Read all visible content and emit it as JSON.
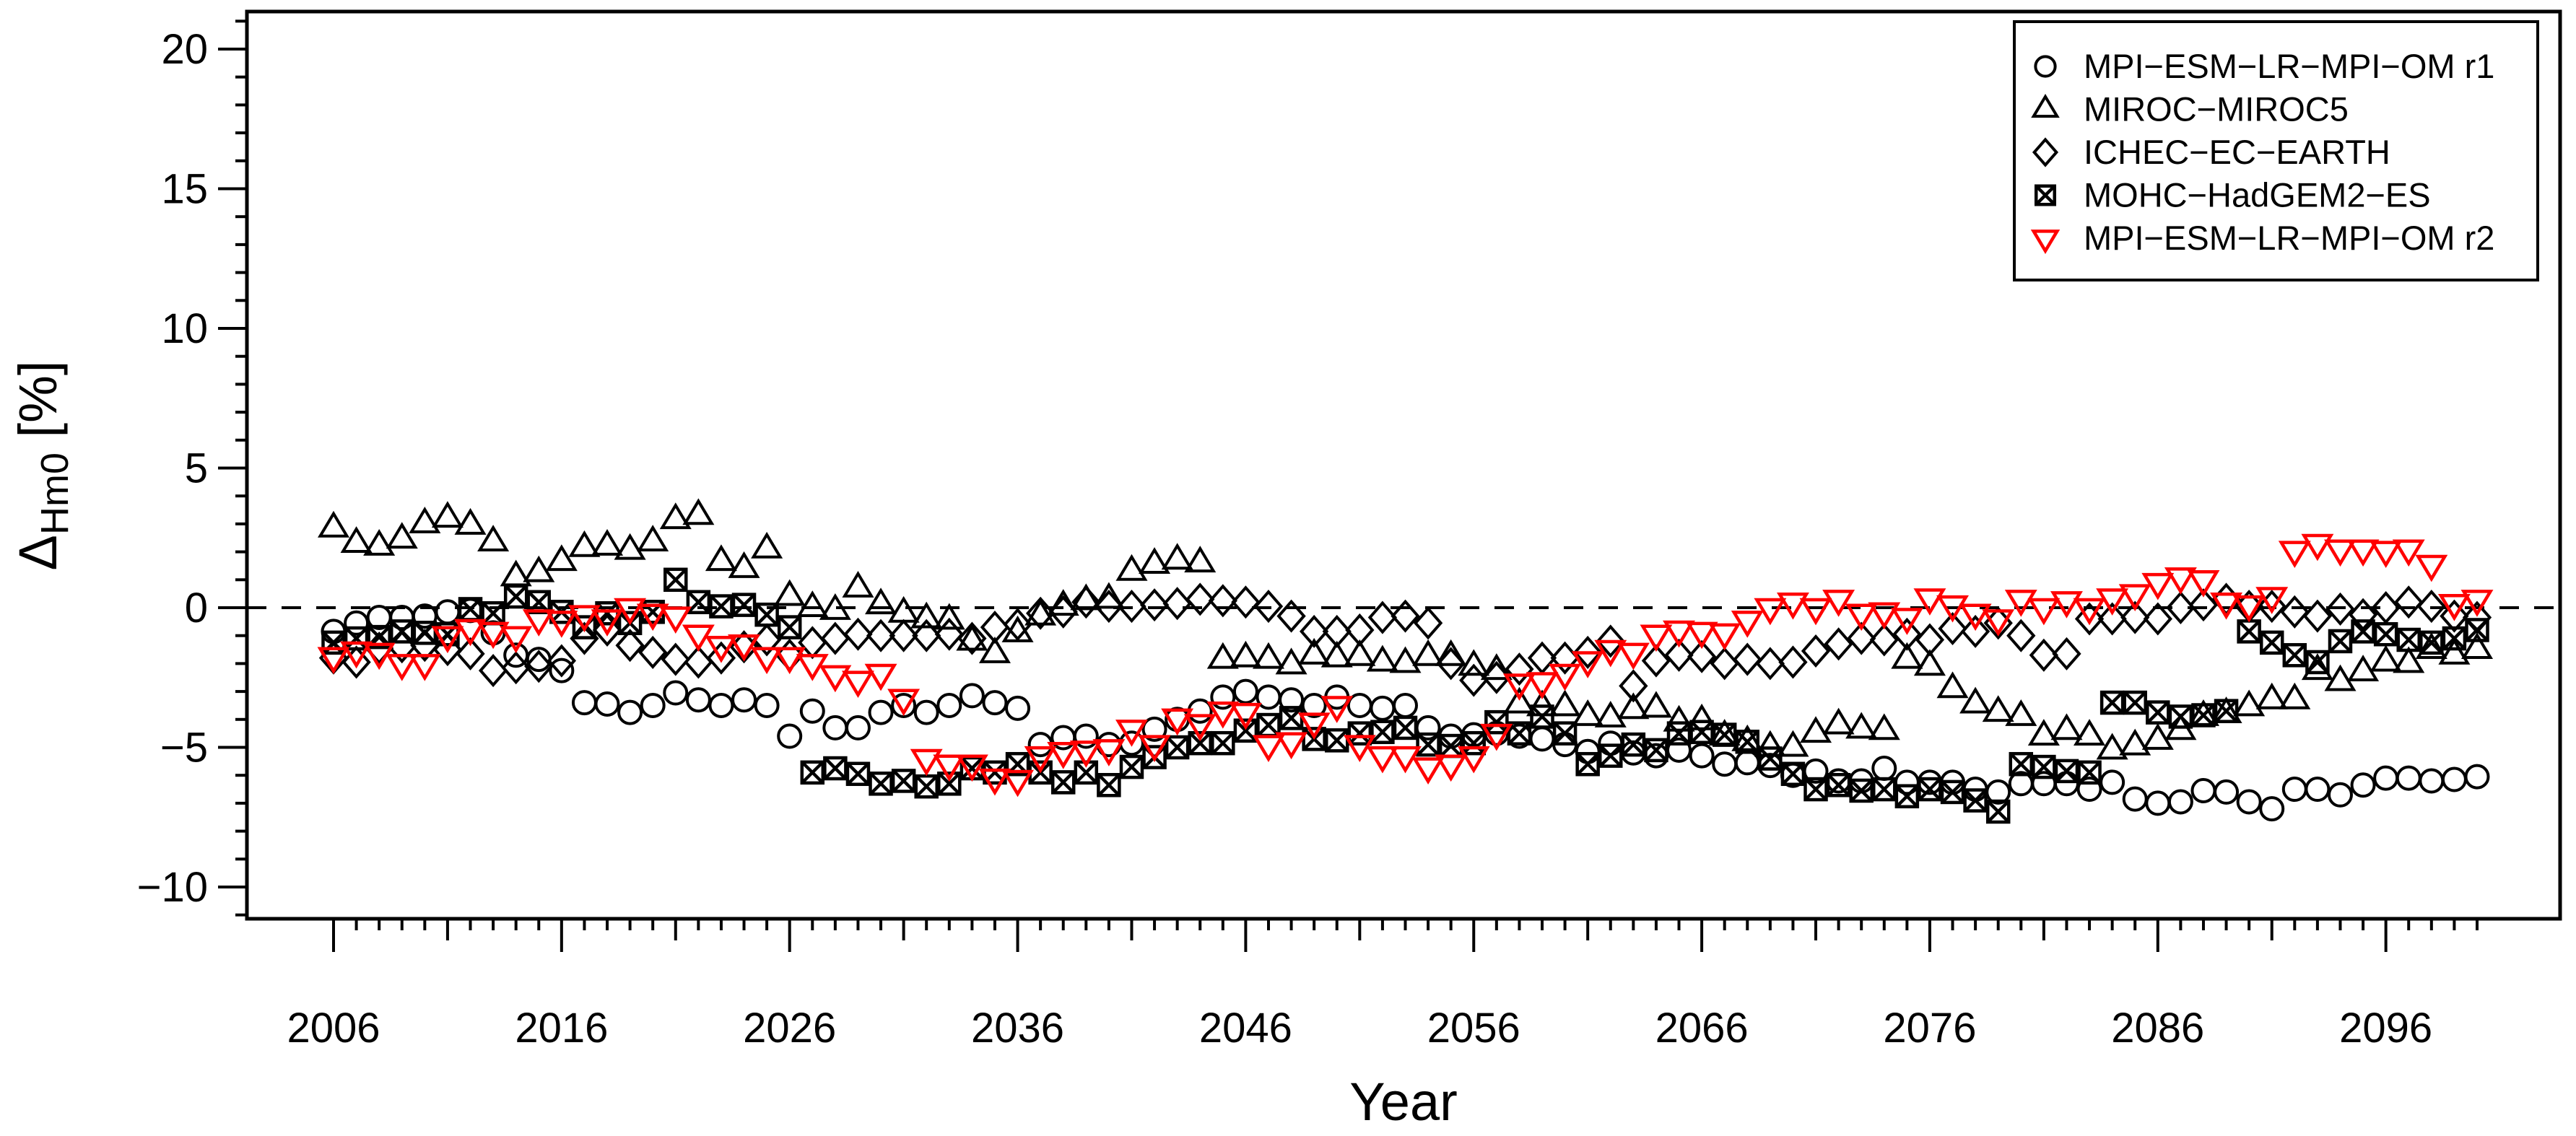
{
  "figure": {
    "background": "#ffffff",
    "axis_color": "#000000",
    "x_axis_title": "Year",
    "y_axis_title_delta": "Δ",
    "y_axis_title_sub": "Hm0",
    "y_axis_title_unit": " [%]"
  },
  "chart_data": {
    "type": "scatter",
    "title": "",
    "xlabel": "Year",
    "ylabel": "ΔHm0 [%]",
    "grid": false,
    "zero_line": {
      "show": true,
      "style": "dashed",
      "y": 0
    },
    "legend_position": "top-right",
    "axes": {
      "xlim": [
        2002.2,
        2103.6
      ],
      "ylim": [
        -11.1,
        21.3
      ],
      "x_tick_labels": [
        2006,
        2016,
        2026,
        2036,
        2046,
        2056,
        2066,
        2076,
        2086,
        2096
      ],
      "x_minor_tick_step": 1,
      "x_medium_tick_step": 5,
      "y_tick_labels": [
        -10,
        -5,
        0,
        5,
        10,
        15,
        20
      ],
      "y_minor_tick_step": 1
    },
    "colors": {
      "black": "#000000",
      "red": "#FF0000"
    },
    "x_start": 2006,
    "x_step": 1,
    "series": [
      {
        "name": "MPI−ESM−LR−MPI−OM r1",
        "marker": "circle",
        "color": "#000000",
        "values": [
          -0.85,
          -0.55,
          -0.35,
          -0.35,
          -0.3,
          -0.15,
          -0.1,
          -0.9,
          -1.7,
          -1.85,
          -2.25,
          -3.4,
          -3.45,
          -3.75,
          -3.5,
          -3.05,
          -3.3,
          -3.5,
          -3.3,
          -3.5,
          -4.6,
          -3.7,
          -4.3,
          -4.3,
          -3.75,
          -3.5,
          -3.75,
          -3.5,
          -3.15,
          -3.4,
          -3.6,
          -4.9,
          -4.65,
          -4.6,
          -4.9,
          -4.85,
          -4.35,
          -4.0,
          -3.7,
          -3.2,
          -3.0,
          -3.2,
          -3.3,
          -3.5,
          -3.2,
          -3.5,
          -3.6,
          -3.5,
          -4.3,
          -4.6,
          -4.55,
          -4.5,
          -4.6,
          -4.7,
          -4.9,
          -5.15,
          -4.85,
          -5.2,
          -5.3,
          -5.1,
          -5.3,
          -5.6,
          -5.55,
          -5.65,
          -6.0,
          -5.85,
          -6.2,
          -6.2,
          -5.75,
          -6.25,
          -6.25,
          -6.25,
          -6.5,
          -6.6,
          -6.3,
          -6.3,
          -6.3,
          -6.5,
          -6.25,
          -6.85,
          -7.0,
          -6.95,
          -6.55,
          -6.6,
          -6.95,
          -7.2,
          -6.5,
          -6.5,
          -6.7,
          -6.35,
          -6.1,
          -6.1,
          -6.2,
          -6.15,
          -6.05
        ]
      },
      {
        "name": "MIROC−MIROC5",
        "marker": "triangle-up",
        "color": "#000000",
        "values": [
          2.85,
          2.3,
          2.2,
          2.45,
          3.0,
          3.2,
          2.95,
          2.35,
          1.1,
          1.25,
          1.65,
          2.15,
          2.2,
          2.05,
          2.35,
          3.15,
          3.3,
          1.65,
          1.4,
          2.1,
          0.4,
          0.0,
          -0.1,
          0.7,
          0.1,
          -0.2,
          -0.4,
          -0.45,
          -1.2,
          -1.65,
          -0.9,
          -0.3,
          0.05,
          0.25,
          0.3,
          1.3,
          1.55,
          1.7,
          1.6,
          -1.85,
          -1.8,
          -1.85,
          -2.05,
          -1.7,
          -1.8,
          -1.75,
          -1.95,
          -2.0,
          -1.75,
          -1.75,
          -2.1,
          -2.25,
          -3.45,
          -3.55,
          -3.55,
          -3.9,
          -3.95,
          -3.65,
          -3.6,
          -4.1,
          -4.05,
          -4.6,
          -4.8,
          -5.0,
          -5.0,
          -4.5,
          -4.2,
          -4.35,
          -4.4,
          -1.85,
          -2.1,
          -2.9,
          -3.45,
          -3.75,
          -3.9,
          -4.6,
          -4.4,
          -4.6,
          -5.1,
          -4.95,
          -4.75,
          -4.4,
          -3.9,
          -3.8,
          -3.55,
          -3.3,
          -3.3,
          -2.25,
          -2.65,
          -2.3,
          -1.95,
          -2.0,
          -1.5,
          -1.7,
          -1.5
        ]
      },
      {
        "name": "ICHEC−EC−EARTH",
        "marker": "diamond",
        "color": "#000000",
        "values": [
          -1.8,
          -1.95,
          -1.45,
          -1.4,
          -1.35,
          -1.5,
          -1.65,
          -2.25,
          -2.15,
          -2.1,
          -1.9,
          -1.1,
          -0.8,
          -1.35,
          -1.6,
          -1.85,
          -1.95,
          -1.8,
          -1.4,
          -1.15,
          -1.7,
          -1.25,
          -1.1,
          -0.95,
          -1.0,
          -1.0,
          -1.0,
          -0.95,
          -1.1,
          -0.7,
          -0.6,
          -0.2,
          -0.15,
          0.2,
          0.05,
          0.05,
          0.1,
          0.15,
          0.3,
          0.25,
          0.2,
          0.05,
          -0.3,
          -0.85,
          -0.85,
          -0.8,
          -0.35,
          -0.3,
          -0.55,
          -2.0,
          -2.6,
          -2.5,
          -2.2,
          -1.8,
          -1.8,
          -1.6,
          -1.2,
          -2.8,
          -1.9,
          -1.7,
          -1.75,
          -2.0,
          -1.85,
          -2.0,
          -1.95,
          -1.55,
          -1.3,
          -1.1,
          -1.15,
          -0.95,
          -1.15,
          -0.75,
          -0.85,
          -0.55,
          -1.0,
          -1.7,
          -1.65,
          -0.4,
          -0.4,
          -0.35,
          -0.4,
          0.0,
          0.1,
          0.3,
          0.05,
          0.05,
          -0.15,
          -0.3,
          -0.05,
          -0.25,
          0.0,
          0.2,
          0.05,
          -0.3,
          -0.35
        ]
      },
      {
        "name": "MOHC−HadGEM2−ES",
        "marker": "square-x",
        "color": "#000000",
        "values": [
          -1.25,
          -1.1,
          -1.05,
          -0.85,
          -0.9,
          -0.95,
          -0.05,
          -0.2,
          0.4,
          0.2,
          -0.15,
          -0.7,
          -0.2,
          -0.55,
          -0.15,
          1.0,
          0.2,
          0.05,
          0.1,
          -0.25,
          -0.7,
          -5.9,
          -5.75,
          -5.95,
          -6.3,
          -6.2,
          -6.4,
          -6.3,
          -5.75,
          -5.9,
          -5.6,
          -5.9,
          -6.25,
          -5.9,
          -6.35,
          -5.7,
          -5.35,
          -5.0,
          -4.85,
          -4.85,
          -4.4,
          -4.2,
          -3.95,
          -4.7,
          -4.75,
          -4.5,
          -4.45,
          -4.3,
          -4.9,
          -4.95,
          -4.85,
          -4.1,
          -4.5,
          -3.9,
          -4.5,
          -5.6,
          -5.3,
          -4.9,
          -5.1,
          -4.5,
          -4.45,
          -4.55,
          -4.8,
          -5.4,
          -5.95,
          -6.5,
          -6.35,
          -6.55,
          -6.5,
          -6.75,
          -6.5,
          -6.6,
          -6.9,
          -7.3,
          -5.6,
          -5.7,
          -5.85,
          -5.9,
          -3.4,
          -3.4,
          -3.75,
          -3.9,
          -3.85,
          -3.7,
          -0.85,
          -1.25,
          -1.7,
          -1.95,
          -1.2,
          -0.85,
          -0.95,
          -1.15,
          -1.25,
          -1.1,
          -0.8
        ]
      },
      {
        "name": "MPI−ESM−LR−MPI−OM r2",
        "marker": "triangle-down",
        "color": "#FF0000",
        "values": [
          -1.75,
          -1.55,
          -1.6,
          -2.0,
          -2.0,
          -1.0,
          -0.75,
          -0.85,
          -1.0,
          -0.4,
          -0.45,
          -0.25,
          -0.4,
          0.0,
          -0.2,
          -0.3,
          -0.95,
          -1.35,
          -1.3,
          -1.75,
          -1.75,
          -2.0,
          -2.4,
          -2.6,
          -2.35,
          -3.25,
          -5.4,
          -5.6,
          -5.6,
          -6.1,
          -6.15,
          -5.3,
          -5.15,
          -5.1,
          -5.05,
          -4.35,
          -4.9,
          -3.95,
          -4.15,
          -3.7,
          -3.75,
          -4.9,
          -4.8,
          -4.1,
          -3.5,
          -4.9,
          -5.3,
          -5.3,
          -5.7,
          -5.6,
          -5.3,
          -4.5,
          -2.7,
          -2.65,
          -2.35,
          -1.9,
          -1.5,
          -1.6,
          -0.95,
          -0.8,
          -0.85,
          -0.9,
          -0.45,
          0.0,
          0.2,
          0.0,
          0.3,
          -0.2,
          -0.15,
          -0.35,
          0.35,
          0.1,
          -0.2,
          -0.4,
          0.3,
          0.0,
          0.25,
          0.0,
          0.35,
          0.5,
          0.9,
          1.1,
          1.0,
          0.2,
          0.1,
          0.4,
          2.05,
          2.3,
          2.1,
          2.1,
          2.05,
          2.1,
          1.55,
          0.15,
          0.3
        ]
      }
    ],
    "legend_entries": [
      "MPI−ESM−LR−MPI−OM r1",
      "MIROC−MIROC5",
      "ICHEC−EC−EARTH",
      "MOHC−HadGEM2−ES",
      "MPI−ESM−LR−MPI−OM r2"
    ]
  }
}
